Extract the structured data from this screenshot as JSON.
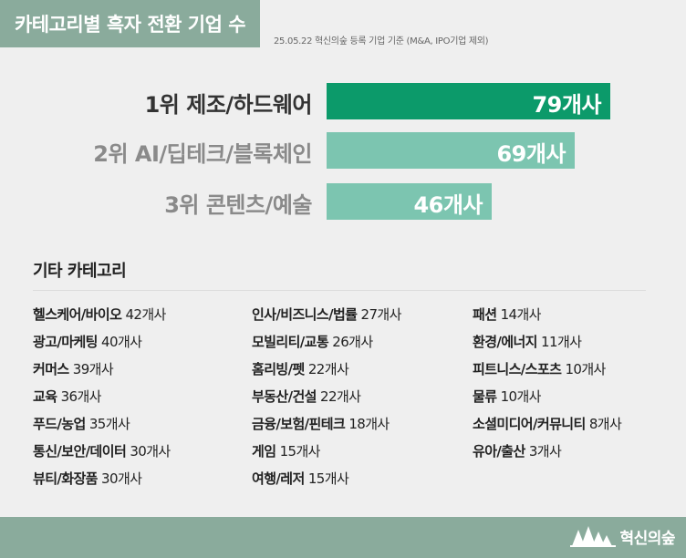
{
  "header": {
    "title": "카테고리별 흑자 전환 기업 수",
    "subtitle": "25.05.22 혁신의숲 등록 기업 기준 (M&A, IPO기업 제외)"
  },
  "colors": {
    "header_bg": "#8aab9c",
    "bar_top": "#0c9a6a",
    "bar_other": "#7cc5b0",
    "label_top": "#333333",
    "label_other": "#8a8a8a"
  },
  "chart_data": {
    "type": "bar",
    "orientation": "horizontal",
    "categories": [
      "1위  제조/하드웨어",
      "2위  AI/딥테크/블록체인",
      "3위  콘텐츠/예술"
    ],
    "values": [
      79,
      69,
      46
    ],
    "value_labels": [
      "79개사",
      "69개사",
      "46개사"
    ],
    "xlim": [
      0,
      79
    ]
  },
  "other": {
    "heading": "기타 카테고리",
    "columns": [
      [
        {
          "name": "헬스케어/바이오",
          "count": "42개사"
        },
        {
          "name": "광고/마케팅",
          "count": "40개사"
        },
        {
          "name": "커머스",
          "count": "39개사"
        },
        {
          "name": "교육",
          "count": "36개사"
        },
        {
          "name": "푸드/농업",
          "count": "35개사"
        },
        {
          "name": "통신/보안/데이터",
          "count": "30개사"
        },
        {
          "name": "뷰티/화장품",
          "count": "30개사"
        }
      ],
      [
        {
          "name": "인사/비즈니스/법률",
          "count": "27개사"
        },
        {
          "name": "모빌리티/교통",
          "count": "26개사"
        },
        {
          "name": "홈리빙/펫",
          "count": "22개사"
        },
        {
          "name": "부동산/건설",
          "count": "22개사"
        },
        {
          "name": "금융/보험/핀테크",
          "count": "18개사"
        },
        {
          "name": "게임",
          "count": "15개사"
        },
        {
          "name": "여행/레저",
          "count": "15개사"
        }
      ],
      [
        {
          "name": "패션",
          "count": "14개사"
        },
        {
          "name": "환경/에너지",
          "count": "11개사"
        },
        {
          "name": "피트니스/스포츠",
          "count": "10개사"
        },
        {
          "name": "물류",
          "count": "10개사"
        },
        {
          "name": "소셜미디어/커뮤니티",
          "count": "8개사"
        },
        {
          "name": "유아/출산",
          "count": "3개사"
        }
      ]
    ]
  },
  "footer": {
    "brand": "혁신의숲",
    "logo_icon": "forest-trees-icon"
  }
}
